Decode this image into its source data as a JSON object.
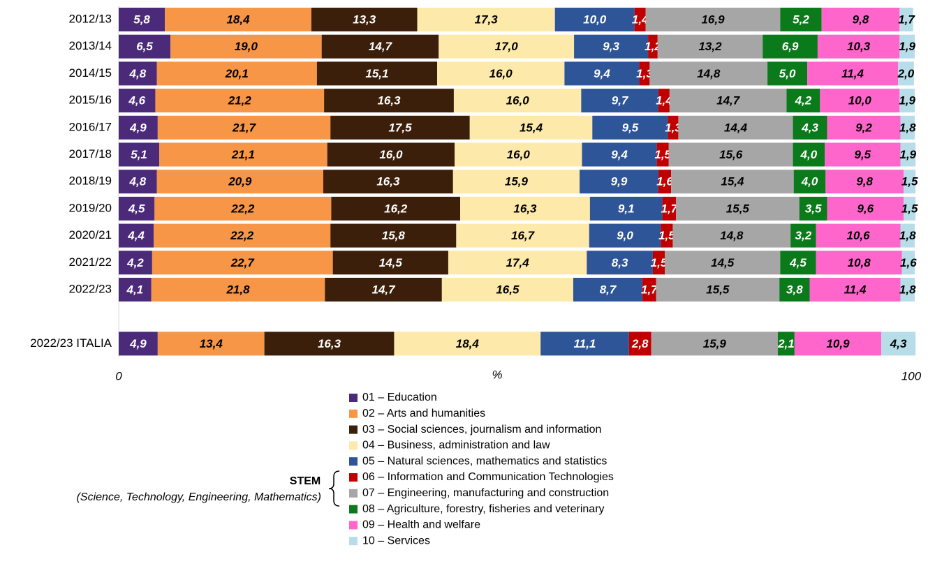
{
  "chart_data": {
    "type": "stacked_bar_horizontal",
    "categories": [
      "2012/13",
      "2013/14",
      "2014/15",
      "2015/16",
      "2016/17",
      "2017/18",
      "2018/19",
      "2019/20",
      "2020/21",
      "2021/22",
      "2022/23",
      null,
      "2022/23 ITALIA"
    ],
    "xlabel": "%",
    "xlim": [
      0,
      100
    ],
    "xticks": [
      0,
      100
    ],
    "annotations": {
      "stem": "STEM",
      "stem_note": "(Science, Technology, Engineering, Mathematics)"
    },
    "series": [
      {
        "name": "01 – Education",
        "color": "#4b2a7a",
        "values": [
          5.8,
          6.5,
          4.8,
          4.6,
          4.9,
          5.1,
          4.8,
          4.5,
          4.4,
          4.2,
          4.1,
          null,
          4.9
        ],
        "value_labels": [
          "5,8",
          "6,5",
          "4,8",
          "4,6",
          "4,9",
          "5,1",
          "4,8",
          "4,5",
          "4,4",
          "4,2",
          "4,1",
          null,
          "4,9"
        ]
      },
      {
        "name": "02 – Arts and humanities",
        "color": "#f79646",
        "values": [
          18.4,
          19.0,
          20.1,
          21.2,
          21.7,
          21.1,
          20.9,
          22.2,
          22.2,
          22.7,
          21.8,
          null,
          13.4
        ],
        "value_labels": [
          "18,4",
          "19,0",
          "20,1",
          "21,2",
          "21,7",
          "21,1",
          "20,9",
          "22,2",
          "22,2",
          "22,7",
          "21,8",
          null,
          "13,4"
        ]
      },
      {
        "name": "03 – Social sciences, journalism and information",
        "color": "#3b1f0b",
        "values": [
          13.3,
          14.7,
          15.1,
          16.3,
          17.5,
          16.0,
          16.3,
          16.2,
          15.8,
          14.5,
          14.7,
          null,
          16.3
        ],
        "value_labels": [
          "13,3",
          "14,7",
          "15,1",
          "16,3",
          "17,5",
          "16,0",
          "16,3",
          "16,2",
          "15,8",
          "14,5",
          "14,7",
          null,
          "16,3"
        ]
      },
      {
        "name": "04 – Business, administration and law",
        "color": "#fde9a9",
        "values": [
          17.3,
          17.0,
          16.0,
          16.0,
          15.4,
          16.0,
          15.9,
          16.3,
          16.7,
          17.4,
          16.5,
          null,
          18.4
        ],
        "value_labels": [
          "17,3",
          "17,0",
          "16,0",
          "16,0",
          "15,4",
          "16,0",
          "15,9",
          "16,3",
          "16,7",
          "17,4",
          "16,5",
          null,
          "18,4"
        ]
      },
      {
        "name": "05 – Natural sciences, mathematics and statistics",
        "color": "#2e5597",
        "values": [
          10.0,
          9.3,
          9.4,
          9.7,
          9.5,
          9.4,
          9.9,
          9.1,
          9.0,
          8.3,
          8.7,
          null,
          11.1
        ],
        "value_labels": [
          "10,0",
          "9,3",
          "9,4",
          "9,7",
          "9,5",
          "9,4",
          "9,9",
          "9,1",
          "9,0",
          "8,3",
          "8,7",
          null,
          "11,1"
        ]
      },
      {
        "name": "06 – Information and Communication Technologies",
        "color": "#c00000",
        "values": [
          1.4,
          1.2,
          1.3,
          1.4,
          1.3,
          1.5,
          1.6,
          1.7,
          1.5,
          1.5,
          1.7,
          null,
          2.8
        ],
        "value_labels": [
          "1,4",
          "1,2",
          "1,3",
          "1,4",
          "1,3",
          "1,5",
          "1,6",
          "1,7",
          "1,5",
          "1,5",
          "1,7",
          null,
          "2,8"
        ]
      },
      {
        "name": "07 – Engineering, manufacturing and construction",
        "color": "#a6a6a6",
        "values": [
          16.9,
          13.2,
          14.8,
          14.7,
          14.4,
          15.6,
          15.4,
          15.5,
          14.8,
          14.5,
          15.5,
          null,
          15.9
        ],
        "value_labels": [
          "16,9",
          "13,2",
          "14,8",
          "14,7",
          "14,4",
          "15,6",
          "15,4",
          "15,5",
          "14,8",
          "14,5",
          "15,5",
          null,
          "15,9"
        ]
      },
      {
        "name": "08 – Agriculture, forestry, fisheries and veterinary",
        "color": "#0a7a1a",
        "values": [
          5.2,
          6.9,
          5.0,
          4.2,
          4.3,
          4.0,
          4.0,
          3.5,
          3.2,
          4.5,
          3.8,
          null,
          2.1
        ],
        "value_labels": [
          "5,2",
          "6,9",
          "5,0",
          "4,2",
          "4,3",
          "4,0",
          "4,0",
          "3,5",
          "3,2",
          "4,5",
          "3,8",
          null,
          "2,1"
        ]
      },
      {
        "name": "09 – Health and welfare",
        "color": "#ff66cc",
        "values": [
          9.8,
          10.3,
          11.4,
          10.0,
          9.2,
          9.5,
          9.8,
          9.6,
          10.6,
          10.8,
          11.4,
          null,
          10.9
        ],
        "value_labels": [
          "9,8",
          "10,3",
          "11,4",
          "10,0",
          "9,2",
          "9,5",
          "9,8",
          "9,6",
          "10,6",
          "10,8",
          "11,4",
          null,
          "10,9"
        ]
      },
      {
        "name": "10 – Services",
        "color": "#b7dde8",
        "values": [
          1.7,
          1.9,
          2.0,
          1.9,
          1.8,
          1.9,
          1.5,
          1.5,
          1.8,
          1.6,
          1.8,
          null,
          4.3
        ],
        "value_labels": [
          "1,7",
          "1,9",
          "2,0",
          "1,9",
          "1,8",
          "1,9",
          "1,5",
          "1,5",
          "1,8",
          "1,6",
          "1,8",
          null,
          "4,3"
        ]
      }
    ]
  }
}
